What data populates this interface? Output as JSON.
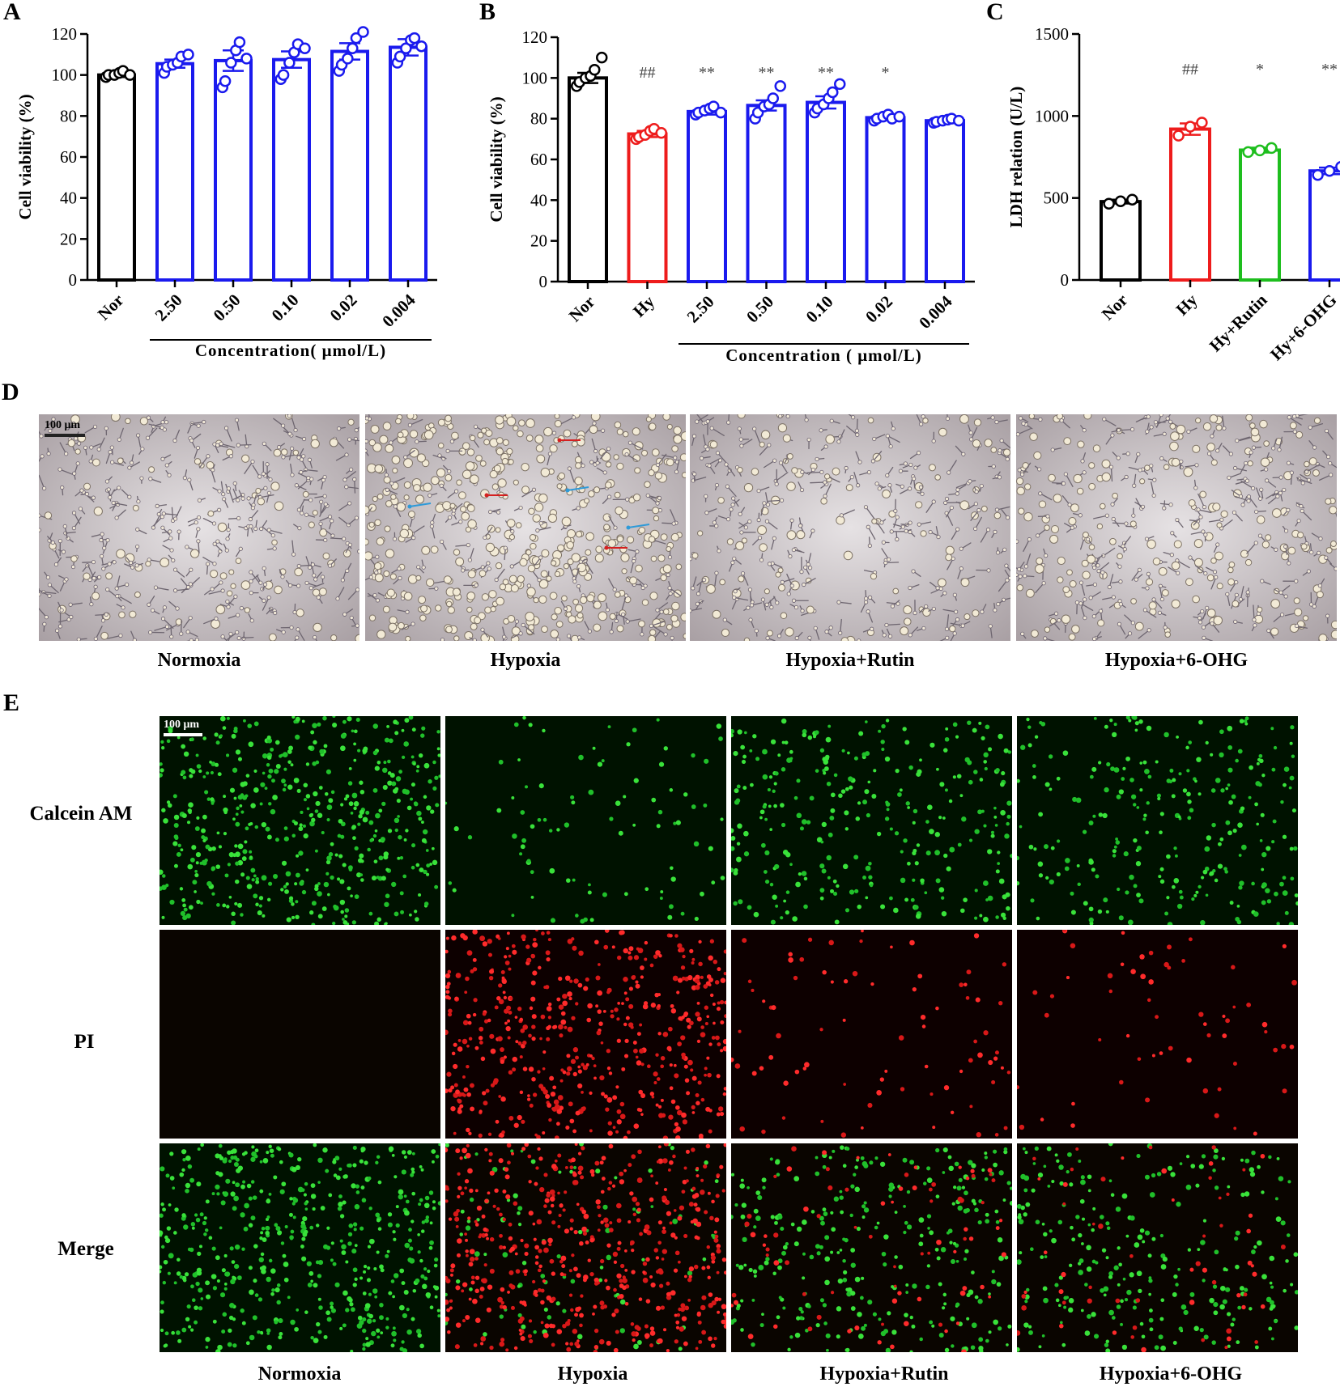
{
  "panels": {
    "a": "A",
    "b": "B",
    "c": "C",
    "d": "D",
    "e": "E"
  },
  "chart_data": [
    {
      "id": "A",
      "type": "bar",
      "ylabel": "Cell viability (%)",
      "ylim": [
        0,
        120
      ],
      "yticks": [
        0,
        20,
        40,
        60,
        80,
        100,
        120
      ],
      "categories": [
        "Nor",
        "2.50",
        "0.50",
        "0.10",
        "0.02",
        "0.004"
      ],
      "values": [
        100,
        105.5,
        107,
        107.5,
        111.5,
        113.5
      ],
      "sem": [
        1,
        2,
        5,
        4,
        4,
        4
      ],
      "points": [
        [
          99,
          100,
          100,
          101,
          102,
          100
        ],
        [
          101,
          104,
          105,
          106,
          109,
          110
        ],
        [
          94,
          97,
          106,
          112,
          116,
          108
        ],
        [
          98,
          100,
          106,
          111,
          115,
          113
        ],
        [
          102,
          105,
          108,
          113,
          118,
          121
        ],
        [
          106,
          109,
          113,
          117,
          118,
          114
        ]
      ],
      "colors": [
        "#000000",
        "#1a1aee",
        "#1a1aee",
        "#1a1aee",
        "#1a1aee",
        "#1a1aee"
      ],
      "group_label": "Concentration( μmol/L)",
      "group_from": 1,
      "group_to": 5,
      "annotations": []
    },
    {
      "id": "B",
      "type": "bar",
      "ylabel": "Cell viability (%)",
      "ylim": [
        0,
        120
      ],
      "yticks": [
        0,
        20,
        40,
        60,
        80,
        100,
        120
      ],
      "categories": [
        "Nor",
        "Hy",
        "2.50",
        "0.50",
        "0.10",
        "0.02",
        "0.004"
      ],
      "values": [
        100,
        72.5,
        83.5,
        86.5,
        88,
        80.5,
        79
      ],
      "sem": [
        2.5,
        1.5,
        1.5,
        2.5,
        3,
        1,
        0.5
      ],
      "points": [
        [
          96,
          98,
          100,
          101,
          104,
          110
        ],
        [
          70,
          71,
          72,
          74,
          75,
          73
        ],
        [
          82,
          83,
          84,
          85,
          86,
          83
        ],
        [
          80,
          83,
          86,
          87,
          90,
          96
        ],
        [
          83,
          85,
          87,
          90,
          93,
          97
        ],
        [
          79,
          80,
          81,
          82,
          80,
          81
        ],
        [
          78,
          78.5,
          79,
          79.5,
          80,
          79
        ]
      ],
      "colors": [
        "#000000",
        "#ee1c1c",
        "#1a1aee",
        "#1a1aee",
        "#1a1aee",
        "#1a1aee",
        "#1a1aee"
      ],
      "group_label": "Concentration ( μmol/L)",
      "group_from": 2,
      "group_to": 6,
      "annotations": [
        "",
        "##",
        "**",
        "**",
        "**",
        "*",
        ""
      ]
    },
    {
      "id": "C",
      "type": "bar",
      "ylabel": "LDH relation (U/L)",
      "ylim": [
        0,
        1500
      ],
      "yticks": [
        0,
        500,
        1000,
        1500
      ],
      "categories": [
        "Nor",
        "Hy",
        "Hy+Rutin",
        "Hy+6-OHG"
      ],
      "values": [
        478,
        920,
        792,
        665
      ],
      "sem": [
        12,
        35,
        15,
        20
      ],
      "points": [
        [
          465,
          480,
          490
        ],
        [
          880,
          935,
          960
        ],
        [
          780,
          790,
          805
        ],
        [
          640,
          665,
          690
        ]
      ],
      "colors": [
        "#000000",
        "#ee1c1c",
        "#1ebe1e",
        "#1a1aee"
      ],
      "annotations": [
        "",
        "##",
        "*",
        "**"
      ]
    }
  ],
  "panel_d": {
    "scale_label": "100 μm",
    "captions": [
      "Normoxia",
      "Hypoxia",
      "Hypoxia+Rutin",
      "Hypoxia+6-OHG"
    ]
  },
  "panel_e": {
    "scale_label": "100 μm",
    "rows": [
      "Calcein AM",
      "PI",
      "Merge"
    ],
    "captions": [
      "Normoxia",
      "Hypoxia",
      "Hypoxia+Rutin",
      "Hypoxia+6-OHG"
    ]
  }
}
